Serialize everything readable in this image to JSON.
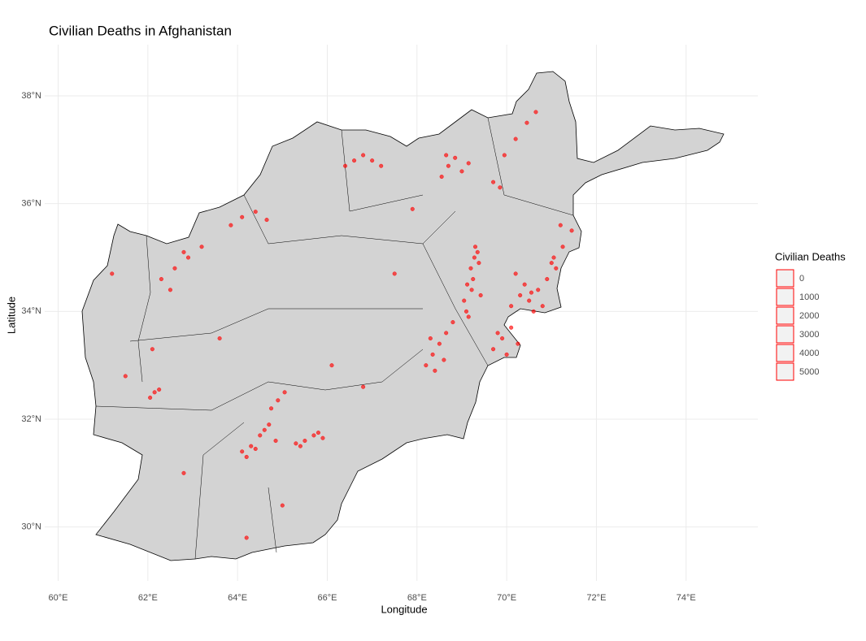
{
  "chart_data": {
    "type": "scatter",
    "title": "Civilian Deaths in Afghanistan",
    "x_label": "Longitude",
    "y_label": "Latitude",
    "xlim": [
      59.7,
      75.6
    ],
    "ylim": [
      29.0,
      38.95
    ],
    "xticks": [
      {
        "value": 60,
        "label": "60°E"
      },
      {
        "value": 62,
        "label": "62°E"
      },
      {
        "value": 64,
        "label": "64°E"
      },
      {
        "value": 66,
        "label": "66°E"
      },
      {
        "value": 68,
        "label": "68°E"
      },
      {
        "value": 70,
        "label": "70°E"
      },
      {
        "value": 72,
        "label": "72°E"
      },
      {
        "value": 74,
        "label": "74°E"
      }
    ],
    "yticks": [
      {
        "value": 30,
        "label": "30°N"
      },
      {
        "value": 32,
        "label": "32°N"
      },
      {
        "value": 34,
        "label": "34°N"
      },
      {
        "value": 36,
        "label": "36°N"
      },
      {
        "value": 38,
        "label": "38°N"
      }
    ],
    "grid": true,
    "color": "#ff0000",
    "legend": {
      "title": "Civilian Deaths",
      "values": [
        0,
        1000,
        2000,
        3000,
        4000,
        5000
      ]
    },
    "x": [
      69.05,
      69.12,
      69.2,
      69.28,
      69.35,
      69.42,
      69.1,
      69.25,
      69.3,
      69.15,
      69.38,
      69.22,
      70.1,
      70.3,
      70.5,
      70.7,
      70.9,
      71.1,
      70.4,
      70.6,
      70.8,
      71.0,
      70.2,
      70.55,
      69.7,
      69.9,
      70.1,
      70.25,
      69.8,
      70.0,
      68.2,
      68.35,
      68.5,
      68.65,
      68.8,
      68.4,
      68.6,
      68.3,
      64.1,
      64.3,
      64.5,
      64.7,
      64.85,
      64.2,
      64.6,
      64.4,
      65.3,
      65.5,
      65.7,
      65.9,
      65.4,
      65.8,
      68.55,
      68.7,
      68.85,
      69.0,
      69.15,
      68.65,
      62.05,
      62.15,
      62.25,
      62.1,
      62.3,
      62.6,
      62.9,
      63.2,
      62.5,
      62.8,
      66.4,
      66.6,
      66.8,
      67.0,
      67.2,
      69.7,
      69.95,
      70.2,
      70.45,
      70.65,
      69.85,
      71.05,
      71.25,
      71.45,
      71.2,
      64.75,
      64.9,
      65.05,
      63.85,
      64.1,
      64.4,
      64.65,
      61.2,
      63.6,
      66.1,
      67.5,
      65.0,
      66.8,
      62.8,
      64.2,
      67.9,
      61.5
    ],
    "y": [
      34.2,
      34.5,
      34.8,
      35.0,
      35.1,
      34.3,
      34.0,
      34.6,
      35.2,
      33.9,
      34.9,
      34.4,
      34.1,
      34.3,
      34.2,
      34.4,
      34.6,
      34.8,
      34.5,
      34.0,
      34.1,
      34.9,
      34.7,
      34.35,
      33.3,
      33.5,
      33.7,
      33.4,
      33.6,
      33.2,
      33.0,
      33.2,
      33.4,
      33.6,
      33.8,
      32.9,
      33.1,
      33.5,
      31.4,
      31.5,
      31.7,
      31.9,
      31.6,
      31.3,
      31.8,
      31.45,
      31.55,
      31.6,
      31.7,
      31.65,
      31.5,
      31.75,
      36.5,
      36.7,
      36.85,
      36.6,
      36.75,
      36.9,
      32.4,
      32.5,
      32.55,
      33.3,
      34.6,
      34.8,
      35.0,
      35.2,
      34.4,
      35.1,
      36.7,
      36.8,
      36.9,
      36.8,
      36.7,
      36.4,
      36.9,
      37.2,
      37.5,
      37.7,
      36.3,
      35.0,
      35.2,
      35.5,
      35.6,
      32.2,
      32.35,
      32.5,
      35.6,
      35.75,
      35.85,
      35.7,
      34.7,
      33.5,
      33.0,
      34.7,
      30.4,
      32.6,
      31.0,
      29.8,
      35.9,
      32.8
    ]
  }
}
